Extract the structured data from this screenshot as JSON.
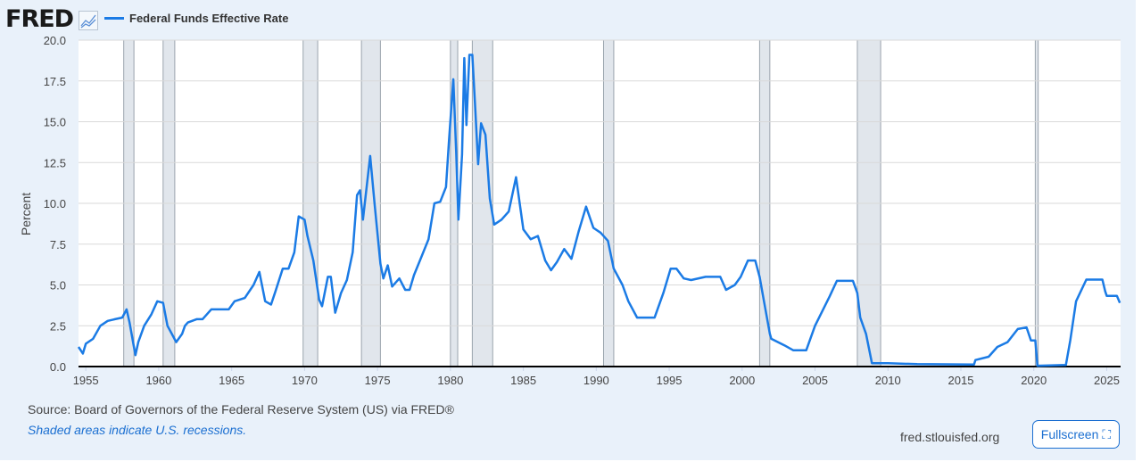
{
  "header": {
    "logo": "FRED",
    "series_label": "Federal Funds Effective Rate"
  },
  "footer": {
    "source": "Source: Board of Governors of the Federal Reserve System (US) via FRED®",
    "note": "Shaded areas indicate U.S. recessions.",
    "site": "fred.stlouisfed.org",
    "fullscreen": "Fullscreen"
  },
  "colors": {
    "line": "#1b7be5",
    "recession": "#e1e6ec",
    "background": "#e9f1fa"
  },
  "chart_data": {
    "type": "line",
    "title": "Federal Funds Effective Rate",
    "xlabel": "",
    "ylabel": "Percent",
    "xlim": [
      1954.5,
      2025.95
    ],
    "ylim": [
      0,
      20
    ],
    "yticks": [
      "0.0",
      "2.5",
      "5.0",
      "7.5",
      "10.0",
      "12.5",
      "15.0",
      "17.5",
      "20.0"
    ],
    "xticks": [
      "1955",
      "1960",
      "1965",
      "1970",
      "1975",
      "1980",
      "1985",
      "1990",
      "1995",
      "2000",
      "2005",
      "2010",
      "2015",
      "2020",
      "2025"
    ],
    "recessions": [
      [
        1957.6,
        1958.3
      ],
      [
        1960.3,
        1961.1
      ],
      [
        1969.9,
        1970.9
      ],
      [
        1973.9,
        1975.2
      ],
      [
        1980.0,
        1980.5
      ],
      [
        1981.5,
        1982.9
      ],
      [
        1990.5,
        1991.2
      ],
      [
        2001.2,
        2001.9
      ],
      [
        2007.9,
        2009.5
      ],
      [
        2020.1,
        2020.3
      ]
    ],
    "series": [
      {
        "name": "Federal Funds Effective Rate",
        "points": [
          [
            1954.5,
            1.2
          ],
          [
            1954.8,
            0.8
          ],
          [
            1955,
            1.4
          ],
          [
            1955.5,
            1.7
          ],
          [
            1956,
            2.5
          ],
          [
            1956.5,
            2.8
          ],
          [
            1957,
            2.9
          ],
          [
            1957.5,
            3.0
          ],
          [
            1957.8,
            3.5
          ],
          [
            1958.0,
            2.7
          ],
          [
            1958.3,
            1.2
          ],
          [
            1958.4,
            0.7
          ],
          [
            1958.6,
            1.5
          ],
          [
            1959,
            2.5
          ],
          [
            1959.5,
            3.2
          ],
          [
            1959.9,
            4.0
          ],
          [
            1960.3,
            3.9
          ],
          [
            1960.6,
            2.5
          ],
          [
            1960.9,
            2.0
          ],
          [
            1961.2,
            1.5
          ],
          [
            1961.6,
            2.0
          ],
          [
            1961.8,
            2.5
          ],
          [
            1962,
            2.7
          ],
          [
            1962.6,
            2.9
          ],
          [
            1963,
            2.9
          ],
          [
            1963.6,
            3.5
          ],
          [
            1964,
            3.5
          ],
          [
            1964.8,
            3.5
          ],
          [
            1965.2,
            4.0
          ],
          [
            1965.9,
            4.2
          ],
          [
            1966.5,
            5.0
          ],
          [
            1966.9,
            5.8
          ],
          [
            1967.3,
            4.0
          ],
          [
            1967.7,
            3.8
          ],
          [
            1968,
            4.6
          ],
          [
            1968.5,
            6.0
          ],
          [
            1968.9,
            6.0
          ],
          [
            1969.3,
            7.0
          ],
          [
            1969.6,
            9.2
          ],
          [
            1970,
            9.0
          ],
          [
            1970.2,
            8.0
          ],
          [
            1970.6,
            6.5
          ],
          [
            1971.0,
            4.1
          ],
          [
            1971.2,
            3.7
          ],
          [
            1971.6,
            5.5
          ],
          [
            1971.8,
            5.5
          ],
          [
            1972.1,
            3.3
          ],
          [
            1972.5,
            4.5
          ],
          [
            1972.9,
            5.3
          ],
          [
            1973.3,
            7.0
          ],
          [
            1973.6,
            10.5
          ],
          [
            1973.8,
            10.8
          ],
          [
            1974.0,
            9.0
          ],
          [
            1974.5,
            12.9
          ],
          [
            1974.8,
            10.0
          ],
          [
            1975.2,
            6.3
          ],
          [
            1975.4,
            5.4
          ],
          [
            1975.7,
            6.2
          ],
          [
            1976.0,
            4.9
          ],
          [
            1976.5,
            5.4
          ],
          [
            1976.9,
            4.7
          ],
          [
            1977.2,
            4.7
          ],
          [
            1977.5,
            5.6
          ],
          [
            1978.0,
            6.7
          ],
          [
            1978.5,
            7.8
          ],
          [
            1978.9,
            10.0
          ],
          [
            1979.3,
            10.1
          ],
          [
            1979.7,
            11.0
          ],
          [
            1979.9,
            13.8
          ],
          [
            1980.2,
            17.6
          ],
          [
            1980.4,
            13.0
          ],
          [
            1980.55,
            9.0
          ],
          [
            1980.8,
            13.0
          ],
          [
            1980.95,
            18.9
          ],
          [
            1981.1,
            14.8
          ],
          [
            1981.3,
            19.1
          ],
          [
            1981.5,
            19.1
          ],
          [
            1981.7,
            15.9
          ],
          [
            1981.9,
            12.4
          ],
          [
            1982.1,
            14.9
          ],
          [
            1982.4,
            14.2
          ],
          [
            1982.7,
            10.3
          ],
          [
            1983.0,
            8.7
          ],
          [
            1983.5,
            9.0
          ],
          [
            1984.0,
            9.5
          ],
          [
            1984.5,
            11.6
          ],
          [
            1985.0,
            8.4
          ],
          [
            1985.5,
            7.8
          ],
          [
            1986.0,
            8.0
          ],
          [
            1986.5,
            6.5
          ],
          [
            1986.9,
            5.9
          ],
          [
            1987.3,
            6.4
          ],
          [
            1987.8,
            7.2
          ],
          [
            1988.3,
            6.6
          ],
          [
            1988.8,
            8.3
          ],
          [
            1989.3,
            9.8
          ],
          [
            1989.8,
            8.5
          ],
          [
            1990.3,
            8.2
          ],
          [
            1990.8,
            7.7
          ],
          [
            1991.2,
            6.0
          ],
          [
            1991.8,
            5.0
          ],
          [
            1992.2,
            4.0
          ],
          [
            1992.8,
            3.0
          ],
          [
            1993.5,
            3.0
          ],
          [
            1994.0,
            3.0
          ],
          [
            1994.6,
            4.5
          ],
          [
            1995.1,
            6.0
          ],
          [
            1995.5,
            6.0
          ],
          [
            1996.0,
            5.4
          ],
          [
            1996.5,
            5.3
          ],
          [
            1997.5,
            5.5
          ],
          [
            1998.5,
            5.5
          ],
          [
            1998.9,
            4.7
          ],
          [
            1999.5,
            5.0
          ],
          [
            1999.9,
            5.5
          ],
          [
            2000.4,
            6.5
          ],
          [
            2000.9,
            6.5
          ],
          [
            2001.2,
            5.5
          ],
          [
            2001.5,
            4.0
          ],
          [
            2001.9,
            2.0
          ],
          [
            2002.0,
            1.7
          ],
          [
            2002.9,
            1.3
          ],
          [
            2003.5,
            1.0
          ],
          [
            2004.4,
            1.0
          ],
          [
            2005.0,
            2.5
          ],
          [
            2006.0,
            4.3
          ],
          [
            2006.5,
            5.25
          ],
          [
            2007.6,
            5.25
          ],
          [
            2007.9,
            4.5
          ],
          [
            2008.1,
            3.0
          ],
          [
            2008.5,
            2.0
          ],
          [
            2008.9,
            0.2
          ],
          [
            2010,
            0.2
          ],
          [
            2012,
            0.15
          ],
          [
            2015.9,
            0.12
          ],
          [
            2016.0,
            0.4
          ],
          [
            2016.9,
            0.6
          ],
          [
            2017.5,
            1.2
          ],
          [
            2018.2,
            1.5
          ],
          [
            2018.9,
            2.3
          ],
          [
            2019.5,
            2.4
          ],
          [
            2019.8,
            1.6
          ],
          [
            2020.1,
            1.6
          ],
          [
            2020.25,
            0.05
          ],
          [
            2022.2,
            0.1
          ],
          [
            2022.5,
            1.6
          ],
          [
            2022.9,
            4.0
          ],
          [
            2023.6,
            5.33
          ],
          [
            2024.7,
            5.33
          ],
          [
            2024.9,
            4.6
          ],
          [
            2025.0,
            4.33
          ],
          [
            2025.7,
            4.33
          ],
          [
            2025.9,
            3.9
          ]
        ]
      }
    ]
  }
}
